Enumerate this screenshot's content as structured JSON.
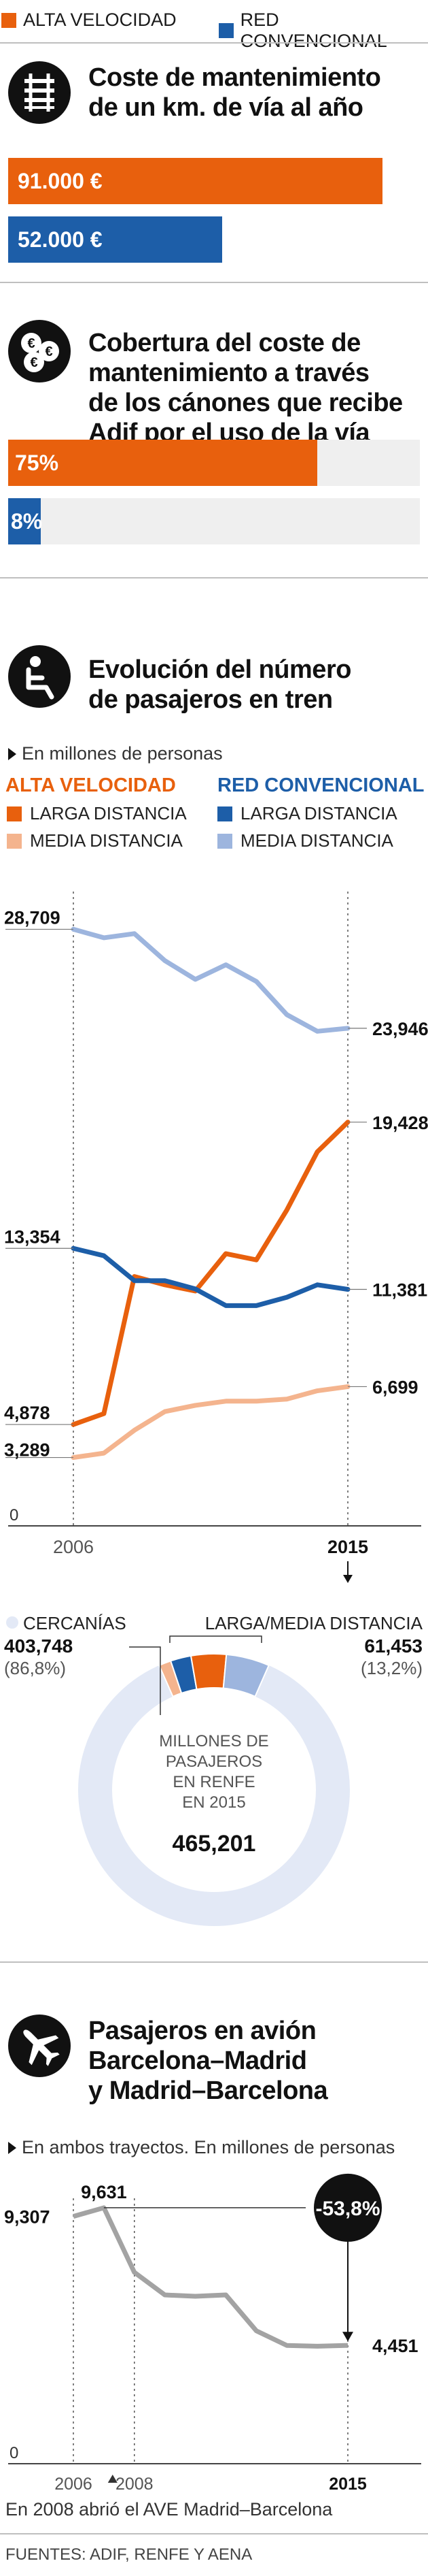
{
  "legend": {
    "high_speed": {
      "label": "ALTA VELOCIDAD",
      "color": "#e8600d"
    },
    "conventional": {
      "label": "RED CONVENCIONAL",
      "color": "#1d5ea8"
    }
  },
  "maintenance": {
    "title_line1": "Coste de mantenimiento",
    "title_line2": "de un km. de vía al año",
    "icon": "rail-track-icon"
  },
  "coverage": {
    "title_line1": "Cobertura del coste de",
    "title_line2": "mantenimiento a través",
    "title_line3": "de los cánones que recibe",
    "title_line4": "Adif por el uso de la vía",
    "icon": "euro-coins-icon"
  },
  "passengers": {
    "title_line1": "Evolución del número",
    "title_line2": "de pasajeros en tren",
    "subtitle": "En millones de personas",
    "icon": "train-seat-icon",
    "legend": {
      "av_head": "ALTA VELOCIDAD",
      "rc_head": "RED CONVENCIONAL",
      "av_long": "LARGA DISTANCIA",
      "av_mid": "MEDIA DISTANCIA",
      "rc_long": "LARGA DISTANCIA",
      "rc_mid": "MEDIA DISTANCIA",
      "av_long_color": "#e8600d",
      "av_mid_color": "#f4b48e",
      "rc_long_color": "#1d5ea8",
      "rc_mid_color": "#9db5de"
    }
  },
  "donut": {
    "cercanias_label": "CERCANÍAS",
    "cercanias_value": "403,748",
    "cercanias_pct": "(86,8%)",
    "ld_label": "LARGA/MEDIA DISTANCIA",
    "ld_value": "61,453",
    "ld_pct": "(13,2%)",
    "center_line1": "MILLONES DE",
    "center_line2": "PASAJEROS",
    "center_line3": "EN RENFE",
    "center_line4": "EN 2015",
    "center_total": "465,201",
    "ring_color": "#e3e9f6"
  },
  "plane": {
    "title_line1": "Pasajeros en avión",
    "title_line2": "Barcelona–Madrid",
    "title_line3": "y Madrid–Barcelona",
    "subtitle": "En ambos trayectos. En millones de personas",
    "icon": "airplane-icon",
    "note": "En 2008 abrió el AVE Madrid–Barcelona",
    "badge_value": "-53,8%"
  },
  "source": "FUENTES: ADIF, RENFE Y AENA",
  "chart_data": [
    {
      "type": "bar",
      "title": "Coste de mantenimiento de un km. de vía al año",
      "categories": [
        "ALTA VELOCIDAD",
        "RED CONVENCIONAL"
      ],
      "values": [
        91000,
        52000
      ],
      "value_labels": [
        "91.000 €",
        "52.000 €"
      ],
      "colors": [
        "#e8600d",
        "#1d5ea8"
      ],
      "xlim": [
        0,
        100000
      ]
    },
    {
      "type": "bar",
      "title": "Cobertura del coste de mantenimiento a través de los cánones que recibe Adif por el uso de la vía",
      "categories": [
        "ALTA VELOCIDAD",
        "RED CONVENCIONAL"
      ],
      "values": [
        75,
        8
      ],
      "value_labels": [
        "75%",
        "8%"
      ],
      "colors": [
        "#e8600d",
        "#1d5ea8"
      ],
      "xlim": [
        0,
        100
      ]
    },
    {
      "type": "line",
      "title": "Evolución del número de pasajeros en tren",
      "subtitle": "En millones de personas",
      "x": [
        2006,
        2007,
        2008,
        2009,
        2010,
        2011,
        2012,
        2013,
        2014,
        2015
      ],
      "x_tick_labels": [
        "2006",
        "2015"
      ],
      "ylim": [
        0,
        30
      ],
      "y_zero_label": "0",
      "series": [
        {
          "name": "RED CONVENCIONAL · MEDIA DISTANCIA",
          "color": "#9db5de",
          "values": [
            28.709,
            28.3,
            28.5,
            27.2,
            26.3,
            27.0,
            26.2,
            24.6,
            23.8,
            23.946
          ],
          "start_label": "28,709",
          "end_label": "23,946"
        },
        {
          "name": "ALTA VELOCIDAD · LARGA DISTANCIA",
          "color": "#e8600d",
          "values": [
            4.878,
            5.4,
            12.0,
            11.6,
            11.3,
            13.1,
            12.8,
            15.2,
            18.0,
            19.428
          ],
          "start_label": "4,878",
          "end_label": "19,428"
        },
        {
          "name": "RED CONVENCIONAL · LARGA DISTANCIA",
          "color": "#1d5ea8",
          "values": [
            13.354,
            13.0,
            11.8,
            11.8,
            11.4,
            10.6,
            10.6,
            11.0,
            11.6,
            11.381
          ],
          "start_label": "13,354",
          "end_label": "11,381"
        },
        {
          "name": "ALTA VELOCIDAD · MEDIA DISTANCIA",
          "color": "#f4b48e",
          "values": [
            3.289,
            3.5,
            4.6,
            5.5,
            5.8,
            6.0,
            6.0,
            6.1,
            6.5,
            6.699
          ],
          "start_label": "3,289",
          "end_label": "6,699"
        }
      ]
    },
    {
      "type": "pie",
      "title": "Millones de pasajeros en Renfe en 2015",
      "categories": [
        "CERCANÍAS",
        "LARGA/MEDIA DISTANCIA"
      ],
      "values": [
        403.748,
        61.453
      ],
      "percentages": [
        86.8,
        13.2
      ],
      "total": 465.201,
      "breakdown_of_ld": [
        {
          "name": "ALTA VELOCIDAD · MEDIA DISTANCIA",
          "value": 6.699,
          "color": "#f4b48e"
        },
        {
          "name": "RED CONVENCIONAL · LARGA DISTANCIA",
          "value": 11.381,
          "color": "#1d5ea8"
        },
        {
          "name": "ALTA VELOCIDAD · LARGA DISTANCIA",
          "value": 19.428,
          "color": "#e8600d"
        },
        {
          "name": "RED CONVENCIONAL · MEDIA DISTANCIA",
          "value": 23.946,
          "color": "#9db5de"
        }
      ]
    },
    {
      "type": "line",
      "title": "Pasajeros en avión Barcelona–Madrid y Madrid–Barcelona",
      "subtitle": "En ambos trayectos. En millones de personas",
      "x": [
        2006,
        2007,
        2008,
        2009,
        2010,
        2011,
        2012,
        2013,
        2014,
        2015
      ],
      "x_tick_labels": [
        "2006",
        "2008",
        "2015"
      ],
      "ylim": [
        0,
        10.5
      ],
      "y_zero_label": "0",
      "series": [
        {
          "name": "",
          "color": "#a3a3a3",
          "values": [
            9.307,
            9.631,
            7.2,
            6.35,
            6.3,
            6.35,
            5.0,
            4.45,
            4.42,
            4.451
          ],
          "labels": {
            "start": "9,307",
            "peak": "9,631",
            "end": "4,451"
          }
        }
      ]
    }
  ]
}
